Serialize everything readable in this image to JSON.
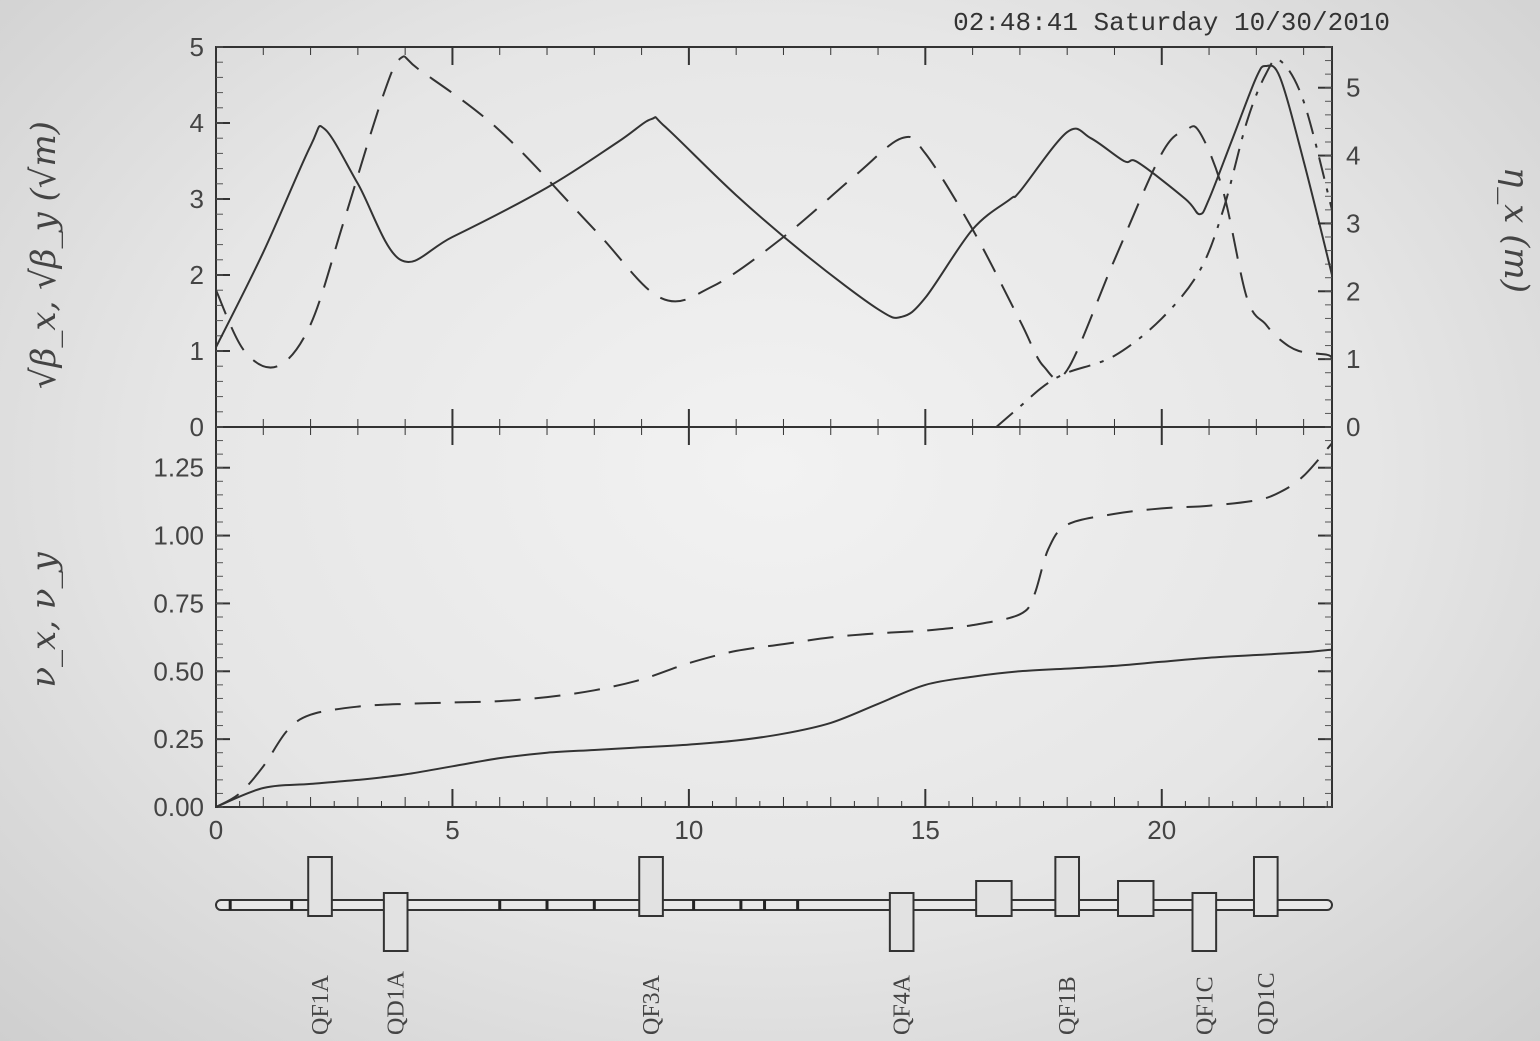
{
  "timestamp": "02:48:41 Saturday 10/30/2010",
  "chart_data": [
    {
      "id": "top-optics",
      "type": "line",
      "xlim": [
        0,
        23.6
      ],
      "ylim": [
        0,
        5
      ],
      "ylim_right": [
        0,
        5.6
      ],
      "y_ticks": [
        "0",
        "1",
        "2",
        "3",
        "4",
        "5"
      ],
      "y_right_ticks": [
        "0",
        "1",
        "2",
        "3",
        "4",
        "5"
      ],
      "ylabel": "√β_x, √β_y (√m)",
      "ylabel_right": "η_x (m)",
      "series": [
        {
          "style": "solid",
          "axis": "left",
          "x": [
            0,
            1,
            2,
            2.3,
            3,
            3.9,
            5,
            7,
            8.5,
            9.2,
            9.5,
            11,
            12.5,
            14,
            14.5,
            15,
            16,
            16.8,
            17,
            18,
            18.5,
            19.2,
            19.5,
            20.5,
            20.8,
            21,
            21.5,
            22,
            22.2,
            22.5,
            23,
            23.6
          ],
          "y": [
            1.05,
            2.3,
            3.7,
            3.92,
            3.2,
            2.2,
            2.5,
            3.15,
            3.75,
            4.05,
            3.95,
            3.05,
            2.25,
            1.55,
            1.45,
            1.7,
            2.6,
            3.0,
            3.1,
            3.88,
            3.8,
            3.5,
            3.48,
            3.0,
            2.8,
            3.0,
            3.8,
            4.6,
            4.75,
            4.6,
            3.5,
            2.0
          ]
        },
        {
          "style": "dashed",
          "axis": "left",
          "x": [
            0,
            0.6,
            1.3,
            2,
            2.7,
            3.5,
            3.9,
            4.3,
            6,
            8,
            9.4,
            10.5,
            12,
            13.5,
            14.5,
            15,
            16,
            17,
            17.5,
            18,
            19,
            20,
            20.5,
            20.8,
            21.3,
            21.8,
            22.2,
            22.5,
            22.9,
            23.5,
            23.6
          ],
          "y": [
            1.8,
            1.0,
            0.8,
            1.35,
            2.7,
            4.3,
            4.85,
            4.7,
            3.9,
            2.6,
            1.7,
            1.85,
            2.5,
            3.3,
            3.8,
            3.6,
            2.6,
            1.4,
            0.8,
            0.75,
            2.2,
            3.6,
            3.9,
            3.88,
            3.1,
            1.7,
            1.35,
            1.15,
            1.0,
            0.95,
            0.9
          ]
        },
        {
          "style": "dashdot",
          "axis": "right",
          "x": [
            16.5,
            17,
            17.5,
            18,
            19,
            20,
            20.8,
            21.3,
            21.8,
            22.2,
            22.5,
            23,
            23.6
          ],
          "y": [
            0.0,
            0.3,
            0.6,
            0.8,
            1.05,
            1.6,
            2.3,
            3.2,
            4.5,
            5.2,
            5.4,
            4.8,
            3.2
          ]
        }
      ]
    },
    {
      "id": "bottom-tune",
      "type": "line",
      "xlim": [
        0,
        23.6
      ],
      "ylim": [
        0,
        1.4
      ],
      "x_ticks": [
        "0",
        "5",
        "10",
        "15",
        "20"
      ],
      "y_ticks": [
        "0.00",
        "0.25",
        "0.50",
        "0.75",
        "1.00",
        "1.25"
      ],
      "ylabel": "ν_x, ν_y",
      "series": [
        {
          "style": "solid",
          "x": [
            0,
            1,
            2,
            3,
            4,
            5,
            6,
            7,
            8,
            9,
            10,
            11,
            12,
            13,
            14,
            15,
            16,
            17,
            18,
            19,
            20,
            21,
            22,
            23,
            23.6
          ],
          "y": [
            0.0,
            0.07,
            0.085,
            0.1,
            0.12,
            0.15,
            0.18,
            0.2,
            0.21,
            0.22,
            0.23,
            0.245,
            0.27,
            0.31,
            0.38,
            0.45,
            0.48,
            0.5,
            0.51,
            0.52,
            0.535,
            0.55,
            0.56,
            0.57,
            0.58
          ]
        },
        {
          "style": "dashed",
          "x": [
            0,
            0.5,
            1,
            1.5,
            2,
            3,
            4,
            5,
            6,
            7,
            8,
            9,
            10,
            11,
            12,
            13,
            14,
            15,
            16,
            17,
            17.3,
            17.6,
            18,
            19,
            20,
            21,
            22,
            22.5,
            23,
            23.6
          ],
          "y": [
            0.0,
            0.05,
            0.15,
            0.28,
            0.34,
            0.37,
            0.38,
            0.385,
            0.39,
            0.405,
            0.43,
            0.47,
            0.53,
            0.575,
            0.6,
            0.625,
            0.64,
            0.65,
            0.67,
            0.71,
            0.78,
            0.95,
            1.04,
            1.08,
            1.1,
            1.11,
            1.13,
            1.16,
            1.22,
            1.34
          ]
        }
      ]
    }
  ],
  "lattice": {
    "elements": [
      {
        "label": "QF1A",
        "s": 2.2,
        "w": 0.5,
        "side": "up"
      },
      {
        "label": "QD1A",
        "s": 3.8,
        "w": 0.5,
        "side": "down"
      },
      {
        "label": "QF3A",
        "s": 9.2,
        "w": 0.5,
        "side": "up"
      },
      {
        "label": "QF4A",
        "s": 14.5,
        "w": 0.5,
        "side": "down"
      },
      {
        "label": "",
        "s": 16.45,
        "w": 0.75,
        "side": "both"
      },
      {
        "label": "QF1B",
        "s": 18.0,
        "w": 0.5,
        "side": "up"
      },
      {
        "label": "",
        "s": 19.45,
        "w": 0.75,
        "side": "both"
      },
      {
        "label": "QF1C",
        "s": 20.9,
        "w": 0.5,
        "side": "down"
      },
      {
        "label": "QD1C",
        "s": 22.2,
        "w": 0.5,
        "side": "up"
      }
    ],
    "markers": [
      0.3,
      1.6,
      6.0,
      7.0,
      8.0,
      10.1,
      11.1,
      11.6,
      12.3
    ]
  }
}
